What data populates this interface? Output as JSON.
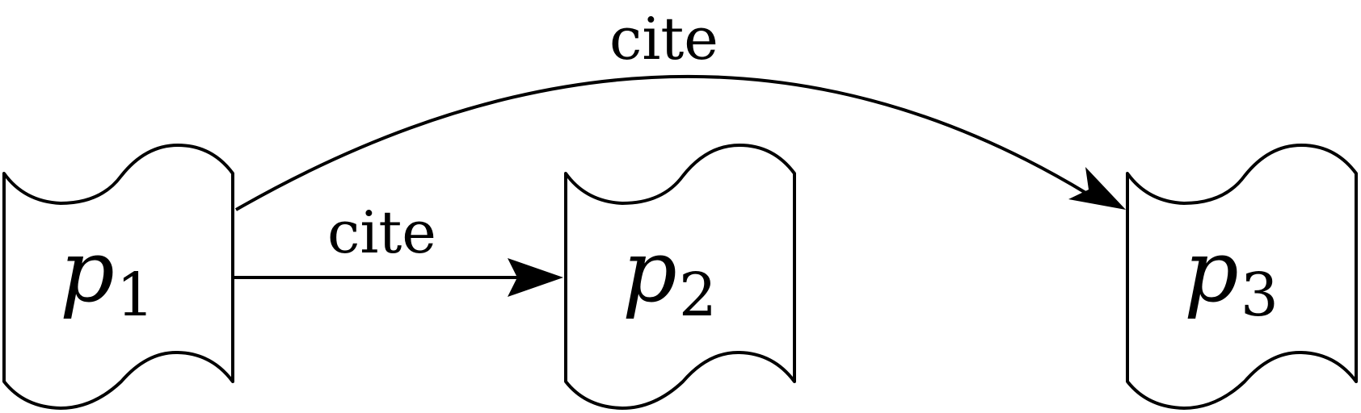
{
  "diagram": {
    "nodes": [
      {
        "id": "p1",
        "var": "p",
        "sub": "1"
      },
      {
        "id": "p2",
        "var": "p",
        "sub": "2"
      },
      {
        "id": "p3",
        "var": "p",
        "sub": "3"
      }
    ],
    "edges": [
      {
        "from": "p1",
        "to": "p2",
        "label": "cite"
      },
      {
        "from": "p1",
        "to": "p3",
        "label": "cite"
      }
    ]
  }
}
